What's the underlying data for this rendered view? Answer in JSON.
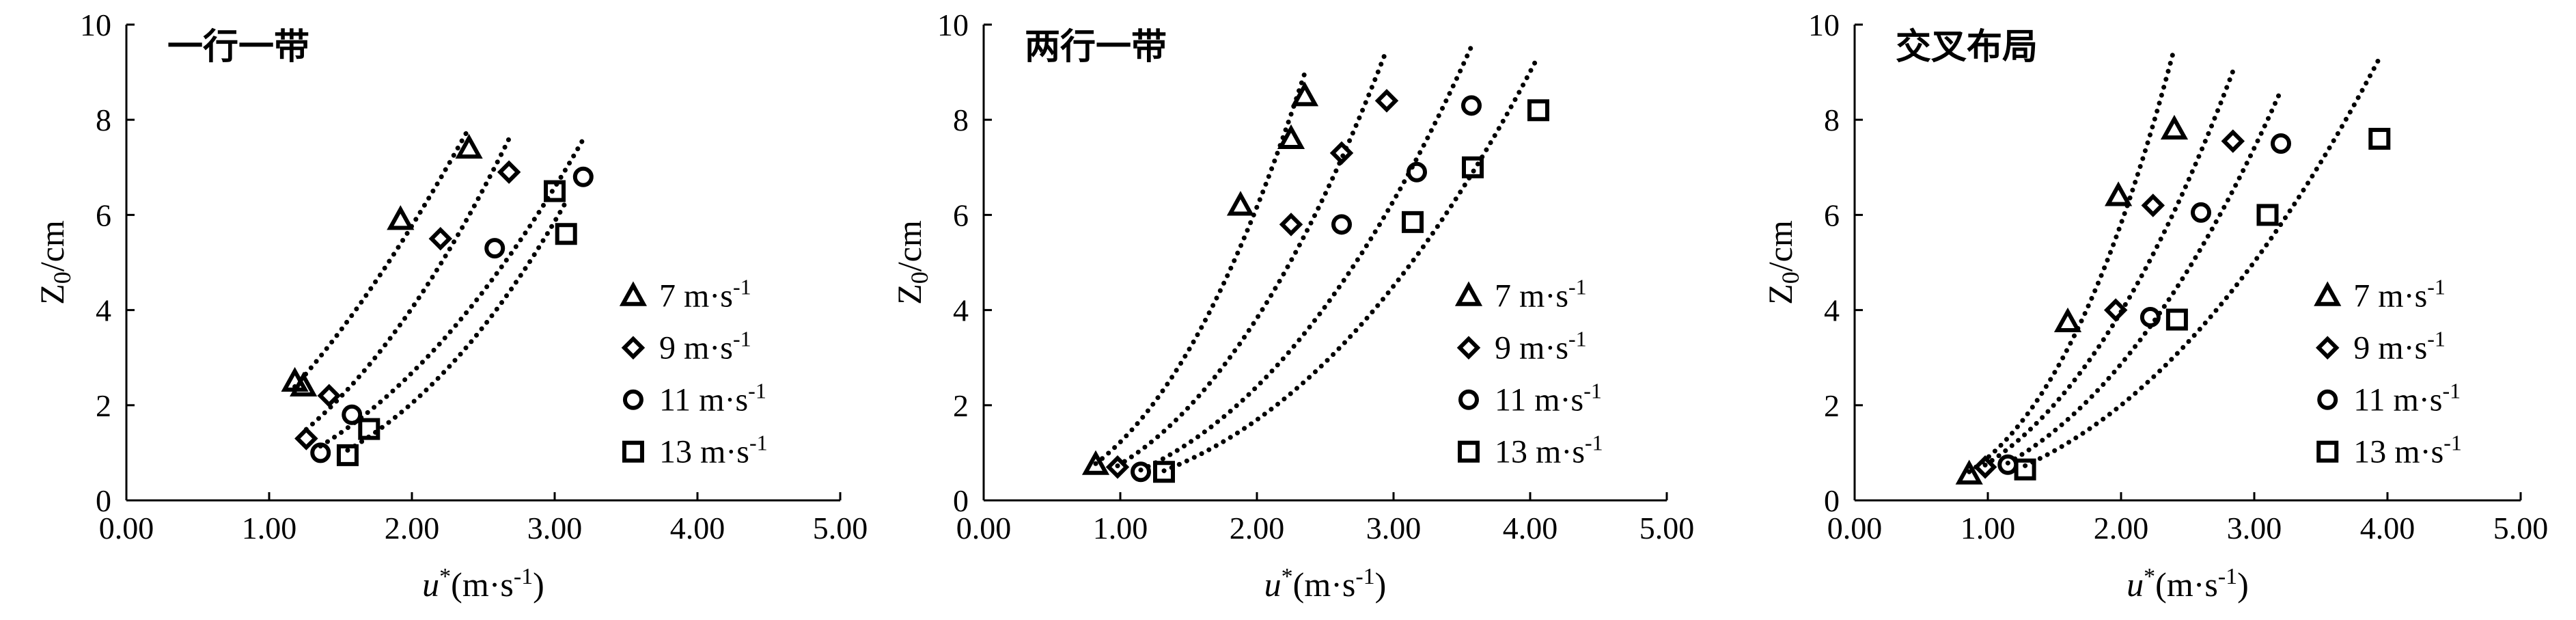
{
  "chart_data": [
    {
      "type": "scatter",
      "title": "一行一带",
      "xlabel": "u*(m·s-1)",
      "ylabel": "Z0/cm",
      "xlim": [
        0,
        5
      ],
      "ylim": [
        0,
        10
      ],
      "xticks": [
        "0.00",
        "1.00",
        "2.00",
        "3.00",
        "4.00",
        "5.00"
      ],
      "yticks": [
        "0",
        "2",
        "4",
        "6",
        "8",
        "10"
      ],
      "legend_position": "right",
      "series": [
        {
          "name": "7 m·s-1",
          "marker": "triangle",
          "x": [
            1.18,
            1.24,
            1.92,
            2.4
          ],
          "y": [
            2.5,
            2.4,
            5.9,
            7.4
          ]
        },
        {
          "name": "9 m·s-1",
          "marker": "diamond",
          "x": [
            1.26,
            1.42,
            2.2,
            2.68
          ],
          "y": [
            1.3,
            2.2,
            5.5,
            6.9
          ]
        },
        {
          "name": "11 m·s-1",
          "marker": "circle",
          "x": [
            1.36,
            1.58,
            2.58,
            3.2
          ],
          "y": [
            1.0,
            1.8,
            5.3,
            6.8
          ]
        },
        {
          "name": "13 m·s-1",
          "marker": "square",
          "x": [
            1.55,
            1.7,
            3.0,
            3.08
          ],
          "y": [
            0.95,
            1.5,
            6.5,
            5.6
          ]
        }
      ]
    },
    {
      "type": "scatter",
      "title": "两行一带",
      "xlabel": "u*(m·s-1)",
      "ylabel": "Z0/cm",
      "xlim": [
        0,
        5
      ],
      "ylim": [
        0,
        10
      ],
      "xticks": [
        "0.00",
        "1.00",
        "2.00",
        "3.00",
        "4.00",
        "5.00"
      ],
      "yticks": [
        "0",
        "2",
        "4",
        "6",
        "8",
        "10"
      ],
      "legend_position": "right",
      "series": [
        {
          "name": "7 m·s-1",
          "marker": "triangle",
          "x": [
            0.82,
            1.88,
            2.25,
            2.35
          ],
          "y": [
            0.75,
            6.2,
            7.6,
            8.5
          ]
        },
        {
          "name": "9 m·s-1",
          "marker": "diamond",
          "x": [
            0.98,
            2.25,
            2.62,
            2.95
          ],
          "y": [
            0.7,
            5.8,
            7.3,
            8.4
          ]
        },
        {
          "name": "11 m·s-1",
          "marker": "circle",
          "x": [
            1.15,
            2.62,
            3.17,
            3.57
          ],
          "y": [
            0.6,
            5.8,
            6.9,
            8.3
          ]
        },
        {
          "name": "13 m·s-1",
          "marker": "square",
          "x": [
            1.32,
            3.14,
            3.58,
            4.06
          ],
          "y": [
            0.6,
            5.85,
            7.0,
            8.2
          ]
        }
      ]
    },
    {
      "type": "scatter",
      "title": "交叉布局",
      "xlabel": "u*(m·s-1)",
      "ylabel": "Z0/cm",
      "xlim": [
        0,
        5
      ],
      "ylim": [
        0,
        10
      ],
      "xticks": [
        "0.00",
        "1.00",
        "2.00",
        "3.00",
        "4.00",
        "5.00"
      ],
      "yticks": [
        "0",
        "2",
        "4",
        "6",
        "8",
        "10"
      ],
      "legend_position": "right",
      "series": [
        {
          "name": "7 m·s-1",
          "marker": "triangle",
          "x": [
            0.86,
            1.6,
            1.98,
            2.4
          ],
          "y": [
            0.55,
            3.75,
            6.4,
            7.8
          ]
        },
        {
          "name": "9 m·s-1",
          "marker": "diamond",
          "x": [
            0.98,
            1.96,
            2.24,
            2.84
          ],
          "y": [
            0.7,
            4.0,
            6.2,
            7.55
          ]
        },
        {
          "name": "11 m·s-1",
          "marker": "circle",
          "x": [
            1.15,
            2.22,
            2.6,
            3.2
          ],
          "y": [
            0.75,
            3.85,
            6.05,
            7.5
          ]
        },
        {
          "name": "13 m·s-1",
          "marker": "square",
          "x": [
            1.28,
            2.42,
            3.1,
            3.94
          ],
          "y": [
            0.65,
            3.8,
            6.0,
            7.6
          ]
        }
      ]
    }
  ]
}
